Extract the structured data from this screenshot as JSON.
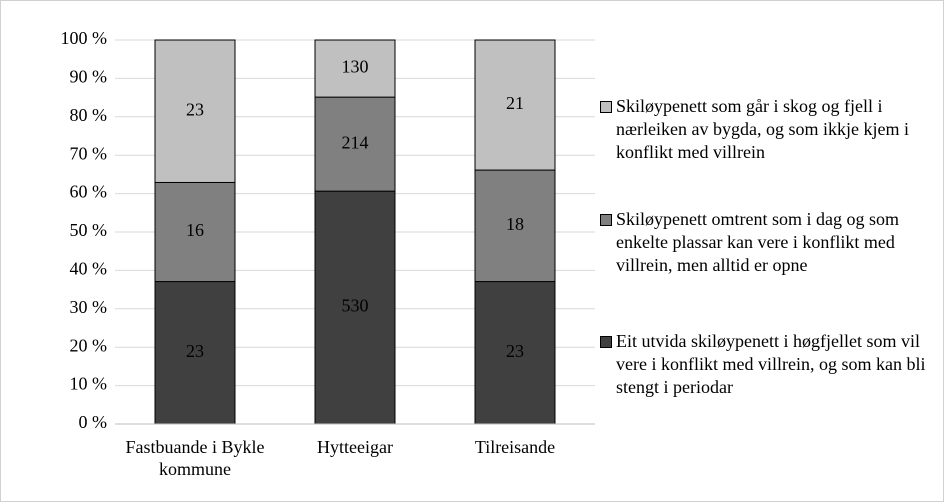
{
  "chart_data": {
    "type": "bar",
    "stack": "percent",
    "categories": [
      "Fastbuande i Bykle kommune",
      "Hytteeigar",
      "Tilreisande"
    ],
    "series": [
      {
        "name": "Eit utvida skiløypenett i høgfjellet som vil vere i konflikt med villrein, og som kan bli stengt i periodar",
        "color": "#404040",
        "values": [
          23,
          530,
          23
        ]
      },
      {
        "name": "Skiløypenett omtrent som i dag og som enkelte plassar kan vere i konflikt med villrein, men alltid er opne",
        "color": "#808080",
        "values": [
          16,
          214,
          18
        ]
      },
      {
        "name": "Skiløypenett som går i skog og fjell i nærleiken av bygda, og som ikkje kjem i konflikt med villrein",
        "color": "#c0c0c0",
        "values": [
          23,
          130,
          21
        ]
      }
    ],
    "ylim": [
      0,
      100
    ],
    "yticks": [
      {
        "value": 0,
        "label": "0 %"
      },
      {
        "value": 10,
        "label": "10 %"
      },
      {
        "value": 20,
        "label": "20 %"
      },
      {
        "value": 30,
        "label": "30 %"
      },
      {
        "value": 40,
        "label": "40 %"
      },
      {
        "value": 50,
        "label": "50 %"
      },
      {
        "value": 60,
        "label": "60 %"
      },
      {
        "value": 70,
        "label": "70 %"
      },
      {
        "value": 80,
        "label": "80 %"
      },
      {
        "value": 90,
        "label": "90 %"
      },
      {
        "value": 100,
        "label": "100 %"
      }
    ],
    "grid": true,
    "legend": "right"
  }
}
